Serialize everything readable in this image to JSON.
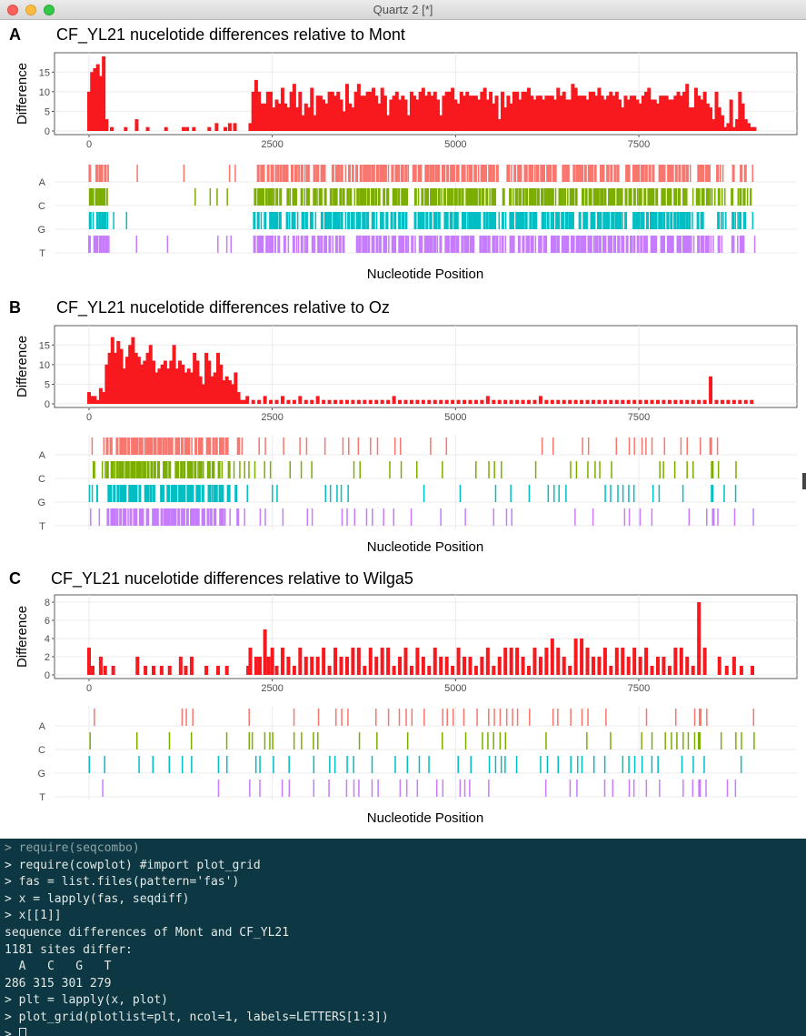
{
  "window": {
    "title": "Quartz 2 [*]"
  },
  "panels": [
    {
      "label": "A",
      "title": "CF_YL21 nucelotide differences relative to Mont",
      "diff_ylabel": "Difference",
      "diff_yticks": [
        0,
        5,
        10,
        15
      ],
      "diff_ymax": 19,
      "xticks": [
        0,
        2500,
        5000,
        7500
      ],
      "xlabel": "Nucleotide Position",
      "nuc_labels": [
        "A",
        "C",
        "G",
        "T"
      ],
      "xmax": 9250
    },
    {
      "label": "B",
      "title": "CF_YL21 nucelotide differences relative to Oz",
      "diff_ylabel": "Difference",
      "diff_yticks": [
        0,
        5,
        10,
        15
      ],
      "diff_ymax": 19,
      "xticks": [
        0,
        2500,
        5000,
        7500
      ],
      "xlabel": "Nucleotide Position",
      "nuc_labels": [
        "A",
        "C",
        "G",
        "T"
      ],
      "xmax": 9250
    },
    {
      "label": "C",
      "title": "CF_YL21 nucelotide differences relative to Wilga5",
      "diff_ylabel": "Difference",
      "diff_yticks": [
        0,
        2,
        4,
        6,
        8
      ],
      "diff_ymax": 8.4,
      "xticks": [
        0,
        2500,
        5000,
        7500
      ],
      "xlabel": "Nucleotide Position",
      "nuc_labels": [
        "A",
        "C",
        "G",
        "T"
      ],
      "xmax": 9250
    }
  ],
  "colors": {
    "bar": "#f8191f",
    "A": "#f8766d",
    "C": "#7cae00",
    "G": "#00bfc4",
    "T": "#c77cff",
    "grid": "#ebebeb",
    "console_bg": "#0c3743"
  },
  "chart_data": [
    {
      "type": "bar",
      "title": "CF_YL21 nucelotide differences relative to Mont",
      "ylabel": "Difference",
      "xlabel": "Nucleotide Position",
      "ylim": [
        0,
        19
      ],
      "xlim": [
        0,
        9250
      ],
      "bin_width_estimate": 40,
      "x": [
        0,
        40,
        80,
        120,
        160,
        200,
        240,
        310,
        500,
        650,
        800,
        1050,
        1290,
        1340,
        1430,
        1640,
        1740,
        1860,
        1920,
        1990,
        2200,
        2240,
        2280,
        2320,
        2360,
        2400,
        2440,
        2480,
        2520,
        2560,
        2600,
        2640,
        2680,
        2720,
        2760,
        2800,
        2840,
        2880,
        2920,
        2960,
        3000,
        3040,
        3080,
        3120,
        3160,
        3200,
        3240,
        3280,
        3320,
        3360,
        3400,
        3440,
        3480,
        3520,
        3560,
        3600,
        3640,
        3680,
        3720,
        3760,
        3800,
        3840,
        3880,
        3920,
        3960,
        4000,
        4040,
        4080,
        4120,
        4160,
        4200,
        4240,
        4280,
        4320,
        4360,
        4400,
        4440,
        4480,
        4520,
        4560,
        4600,
        4640,
        4680,
        4720,
        4760,
        4800,
        4840,
        4880,
        4920,
        4960,
        5000,
        5040,
        5080,
        5120,
        5160,
        5200,
        5240,
        5280,
        5320,
        5360,
        5400,
        5440,
        5480,
        5520,
        5560,
        5600,
        5640,
        5680,
        5720,
        5760,
        5800,
        5840,
        5880,
        5920,
        5960,
        6000,
        6040,
        6080,
        6120,
        6160,
        6200,
        6240,
        6280,
        6320,
        6360,
        6400,
        6440,
        6480,
        6520,
        6560,
        6600,
        6640,
        6680,
        6720,
        6760,
        6800,
        6840,
        6880,
        6920,
        6960,
        7000,
        7040,
        7080,
        7120,
        7160,
        7200,
        7240,
        7280,
        7320,
        7360,
        7400,
        7440,
        7480,
        7520,
        7560,
        7600,
        7640,
        7680,
        7720,
        7760,
        7800,
        7840,
        7880,
        7920,
        7960,
        8000,
        8040,
        8080,
        8120,
        8160,
        8200,
        8240,
        8280,
        8320,
        8360,
        8400,
        8440,
        8480,
        8520,
        8560,
        8600,
        8640,
        8680,
        8720,
        8760,
        8800,
        8840,
        8880,
        8920,
        8960,
        9000,
        9040,
        9080
      ],
      "values": [
        10,
        15,
        16,
        17,
        14,
        19,
        3,
        1,
        1,
        3,
        1,
        1,
        1,
        1,
        1,
        1,
        2,
        1,
        2,
        2,
        2,
        10,
        13,
        10,
        7,
        7,
        10,
        10,
        6,
        8,
        7,
        11,
        7,
        6,
        10,
        12,
        6,
        10,
        4,
        7,
        6,
        11,
        4,
        9,
        9,
        8,
        7,
        10,
        10,
        9,
        10,
        8,
        5,
        12,
        7,
        6,
        10,
        12,
        9,
        9,
        10,
        10,
        11,
        9,
        7,
        11,
        9,
        4,
        8,
        9,
        10,
        8,
        9,
        8,
        4,
        10,
        9,
        8,
        10,
        11,
        9,
        10,
        9,
        10,
        8,
        4,
        9,
        10,
        10,
        11,
        8,
        7,
        10,
        9,
        10,
        9,
        9,
        9,
        8,
        10,
        11,
        8,
        10,
        7,
        9,
        3,
        10,
        6,
        9,
        7,
        10,
        10,
        8,
        10,
        10,
        11,
        9,
        8,
        9,
        9,
        8,
        9,
        9,
        9,
        8,
        11,
        9,
        10,
        8,
        8,
        12,
        11,
        9,
        9,
        9,
        8,
        10,
        10,
        9,
        11,
        9,
        8,
        9,
        10,
        9,
        10,
        8,
        6,
        9,
        8,
        9,
        9,
        8,
        7,
        9,
        10,
        11,
        8,
        8,
        7,
        9,
        9,
        9,
        8,
        8,
        9,
        10,
        9,
        10,
        12,
        6,
        6,
        11,
        9,
        8,
        10,
        7,
        6,
        3,
        10,
        6,
        4,
        1,
        2,
        8,
        1,
        3,
        10,
        7,
        3,
        2,
        1,
        1
      ],
      "substitution_types": [
        "A",
        "C",
        "G",
        "T"
      ]
    },
    {
      "type": "bar",
      "title": "CF_YL21 nucelotide differences relative to Oz",
      "ylabel": "Difference",
      "xlabel": "Nucleotide Position",
      "ylim": [
        0,
        19
      ],
      "xlim": [
        0,
        9250
      ],
      "bin_width_estimate": 40,
      "x": [
        0,
        40,
        80,
        120,
        160,
        200,
        240,
        280,
        320,
        360,
        400,
        440,
        480,
        520,
        560,
        600,
        640,
        680,
        720,
        760,
        800,
        840,
        880,
        920,
        960,
        1000,
        1040,
        1080,
        1120,
        1160,
        1200,
        1240,
        1280,
        1320,
        1360,
        1400,
        1440,
        1480,
        1520,
        1560,
        1600,
        1640,
        1680,
        1720,
        1760,
        1800,
        1840,
        1880,
        1920,
        1960,
        2000,
        2040,
        2080,
        2120,
        2160,
        2240,
        2320,
        2400,
        2480,
        2560,
        2640,
        2720,
        2800,
        2880,
        2960,
        3040,
        3120,
        3200,
        3280,
        3360,
        3440,
        3520,
        3600,
        3680,
        3760,
        3840,
        3920,
        4000,
        4080,
        4160,
        4240,
        4320,
        4400,
        4480,
        4560,
        4640,
        4720,
        4800,
        4880,
        4960,
        5040,
        5120,
        5200,
        5280,
        5360,
        5440,
        5520,
        5600,
        5680,
        5760,
        5840,
        5920,
        6000,
        6080,
        6160,
        6240,
        6320,
        6400,
        6480,
        6560,
        6640,
        6720,
        6800,
        6880,
        6960,
        7040,
        7120,
        7200,
        7280,
        7360,
        7440,
        7520,
        7600,
        7680,
        7760,
        7840,
        7920,
        8000,
        8080,
        8160,
        8240,
        8320,
        8400,
        8480,
        8560,
        8640,
        8720,
        8800,
        8880,
        8960,
        9040
      ],
      "values": [
        3,
        2,
        2,
        1,
        4,
        3,
        10,
        13,
        17,
        13,
        16,
        14,
        9,
        12,
        15,
        17,
        13,
        12,
        10,
        11,
        13,
        15,
        11,
        8,
        9,
        10,
        11,
        9,
        11,
        15,
        9,
        11,
        10,
        8,
        9,
        8,
        13,
        11,
        7,
        5,
        13,
        11,
        7,
        8,
        13,
        10,
        6,
        7,
        6,
        5,
        8,
        3,
        1,
        1,
        2,
        1,
        1,
        2,
        1,
        1,
        2,
        1,
        1,
        2,
        1,
        1,
        2,
        1,
        1,
        1,
        1,
        1,
        1,
        1,
        1,
        1,
        1,
        1,
        1,
        2,
        1,
        1,
        1,
        1,
        1,
        1,
        1,
        1,
        1,
        1,
        1,
        1,
        1,
        1,
        1,
        2,
        1,
        1,
        1,
        1,
        1,
        1,
        1,
        1,
        2,
        1,
        1,
        1,
        1,
        1,
        1,
        1,
        1,
        1,
        1,
        1,
        1,
        1,
        1,
        1,
        1,
        1,
        1,
        1,
        1,
        1,
        1,
        1,
        1,
        1,
        1,
        1,
        1,
        7,
        1,
        1,
        1,
        1,
        1,
        1,
        1
      ],
      "substitution_types": [
        "A",
        "C",
        "G",
        "T"
      ]
    },
    {
      "type": "bar",
      "title": "CF_YL21 nucelotide differences relative to Wilga5",
      "ylabel": "Difference",
      "xlabel": "Nucleotide Position",
      "ylim": [
        0,
        8.4
      ],
      "xlim": [
        0,
        9250
      ],
      "bin_width_estimate": 40,
      "x": [
        0,
        50,
        160,
        220,
        330,
        660,
        770,
        880,
        990,
        1100,
        1250,
        1320,
        1400,
        1600,
        1760,
        1880,
        2170,
        2200,
        2280,
        2330,
        2400,
        2450,
        2500,
        2560,
        2640,
        2720,
        2800,
        2880,
        2960,
        3040,
        3120,
        3200,
        3280,
        3360,
        3440,
        3520,
        3600,
        3680,
        3760,
        3840,
        3920,
        4000,
        4080,
        4160,
        4240,
        4320,
        4400,
        4480,
        4560,
        4640,
        4720,
        4800,
        4880,
        4960,
        5040,
        5120,
        5200,
        5280,
        5360,
        5440,
        5520,
        5600,
        5680,
        5760,
        5840,
        5920,
        6000,
        6080,
        6160,
        6240,
        6320,
        6400,
        6480,
        6560,
        6640,
        6720,
        6800,
        6880,
        6960,
        7040,
        7120,
        7200,
        7280,
        7360,
        7440,
        7520,
        7600,
        7680,
        7760,
        7840,
        7920,
        8000,
        8080,
        8160,
        8240,
        8320,
        8400,
        8600,
        8700,
        8800,
        8900,
        9050
      ],
      "values": [
        3,
        1,
        2,
        1,
        1,
        2,
        1,
        1,
        1,
        1,
        2,
        1,
        2,
        1,
        1,
        1,
        1,
        3,
        2,
        2,
        5,
        2,
        3,
        1,
        3,
        2,
        1,
        3,
        2,
        2,
        2,
        3,
        1,
        3,
        2,
        2,
        3,
        3,
        1,
        3,
        2,
        3,
        3,
        1,
        2,
        3,
        1,
        3,
        2,
        1,
        3,
        2,
        2,
        1,
        3,
        2,
        2,
        1,
        2,
        3,
        1,
        2,
        3,
        3,
        3,
        2,
        1,
        3,
        2,
        3,
        4,
        3,
        2,
        1,
        4,
        4,
        3,
        2,
        2,
        3,
        1,
        3,
        3,
        2,
        3,
        2,
        3,
        1,
        2,
        2,
        1,
        3,
        3,
        2,
        1,
        8,
        3,
        2,
        1,
        2,
        1,
        1
      ],
      "substitution_types": [
        "A",
        "C",
        "G",
        "T"
      ]
    }
  ],
  "console": {
    "lines": [
      {
        "text": "> require(seqcombo)",
        "style": "dim"
      },
      {
        "text": "> require(cowplot) #import plot_grid",
        "style": "normal"
      },
      {
        "text": "> fas = list.files(pattern='fas')",
        "style": "normal"
      },
      {
        "text": "> x = lapply(fas, seqdiff)",
        "style": "normal"
      },
      {
        "text": "> x[[1]]",
        "style": "normal"
      },
      {
        "text": "sequence differences of Mont and CF_YL21",
        "style": "normal"
      },
      {
        "text": "1181 sites differ:",
        "style": "normal"
      },
      {
        "text": "  A   C   G   T",
        "style": "normal"
      },
      {
        "text": "286 315 301 279",
        "style": "normal"
      },
      {
        "text": "> plt = lapply(x, plot)",
        "style": "normal"
      },
      {
        "text": "> plot_grid(plotlist=plt, ncol=1, labels=LETTERS[1:3])",
        "style": "normal"
      },
      {
        "text": "> ",
        "style": "prompt"
      }
    ]
  }
}
